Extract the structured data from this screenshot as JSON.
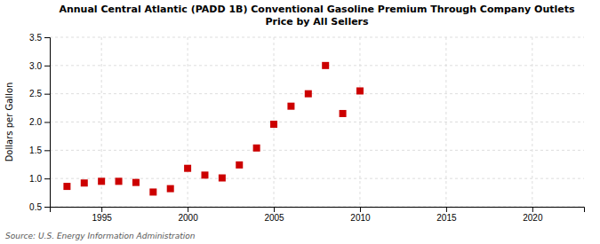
{
  "chart_data": {
    "type": "scatter",
    "title": "Annual Central Atlantic (PADD 1B) Conventional Gasoline Premium Through Company Outlets\nPrice by All Sellers",
    "y_label": "Dollars per Gallon",
    "source": "Source: U.S. Energy Information Administration",
    "x": [
      1993,
      1994,
      1995,
      1996,
      1997,
      1998,
      1999,
      2000,
      2001,
      2002,
      2003,
      2004,
      2005,
      2006,
      2007,
      2008,
      2009,
      2010
    ],
    "values": [
      0.86,
      0.92,
      0.95,
      0.95,
      0.93,
      0.76,
      0.82,
      1.18,
      1.06,
      1.01,
      1.24,
      1.54,
      1.96,
      2.28,
      2.5,
      3.0,
      2.15,
      2.55
    ],
    "color": "#cc0000",
    "marker": "square",
    "xlim": [
      1992,
      2023
    ],
    "ylim": [
      0.5,
      3.5
    ],
    "xticks": [
      1995,
      2000,
      2005,
      2010,
      2015,
      2020
    ],
    "yticks": [
      0.5,
      {
        "value": 1.0,
        "label": "1.0"
      },
      1.5,
      {
        "value": 2.0,
        "label": "2.0"
      },
      2.5,
      {
        "value": 3.0,
        "label": "3.0"
      },
      3.5
    ],
    "grid": true
  }
}
